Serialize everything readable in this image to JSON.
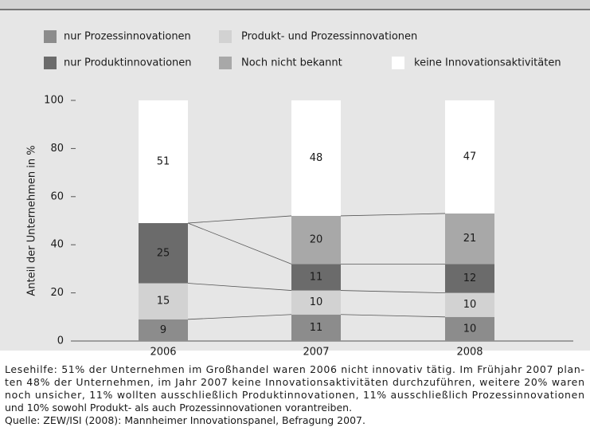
{
  "chart_data": {
    "type": "stacked_bar",
    "categories": [
      "2006",
      "2007",
      "2008"
    ],
    "series": [
      {
        "name": "nur Prozessinnovationen",
        "color": "#8c8c8c",
        "values": [
          9,
          11,
          10
        ]
      },
      {
        "name": "Produkt- und Prozessinnovationen",
        "color": "#d2d2d2",
        "values": [
          15,
          10,
          10
        ]
      },
      {
        "name": "nur Produktinnovationen",
        "color": "#6b6b6b",
        "values": [
          25,
          11,
          12
        ]
      },
      {
        "name": "Noch nicht bekannt",
        "color": "#a8a8a8",
        "values": [
          null,
          20,
          21
        ]
      },
      {
        "name": "keine Innovationsaktivitäten",
        "color": "#ffffff",
        "values": [
          51,
          48,
          47
        ]
      }
    ],
    "ylabel": "Anteil der Unternehmen in %",
    "ylim": [
      0,
      100
    ],
    "yticks": [
      0,
      20,
      40,
      60,
      80,
      100
    ],
    "footnote": [
      "Lesehilfe: 51% der Unternehmen im Großhandel waren 2006 nicht innovativ tätig. Im Frühjahr 2007 plan-",
      "ten 48% der Unternehmen, im Jahr 2007 keine Innovationsaktivitäten durchzuführen, weitere 20% waren",
      "noch unsicher, 11% wollten ausschließlich Produktinnovationen, 11% ausschließlich Prozessinnovationen",
      "und 10% sowohl Produkt- als auch Prozessinnovationen vorantreiben.",
      "Quelle: ZEW/ISI (2008): Mannheimer Innovationspanel, Befragung 2007."
    ]
  }
}
